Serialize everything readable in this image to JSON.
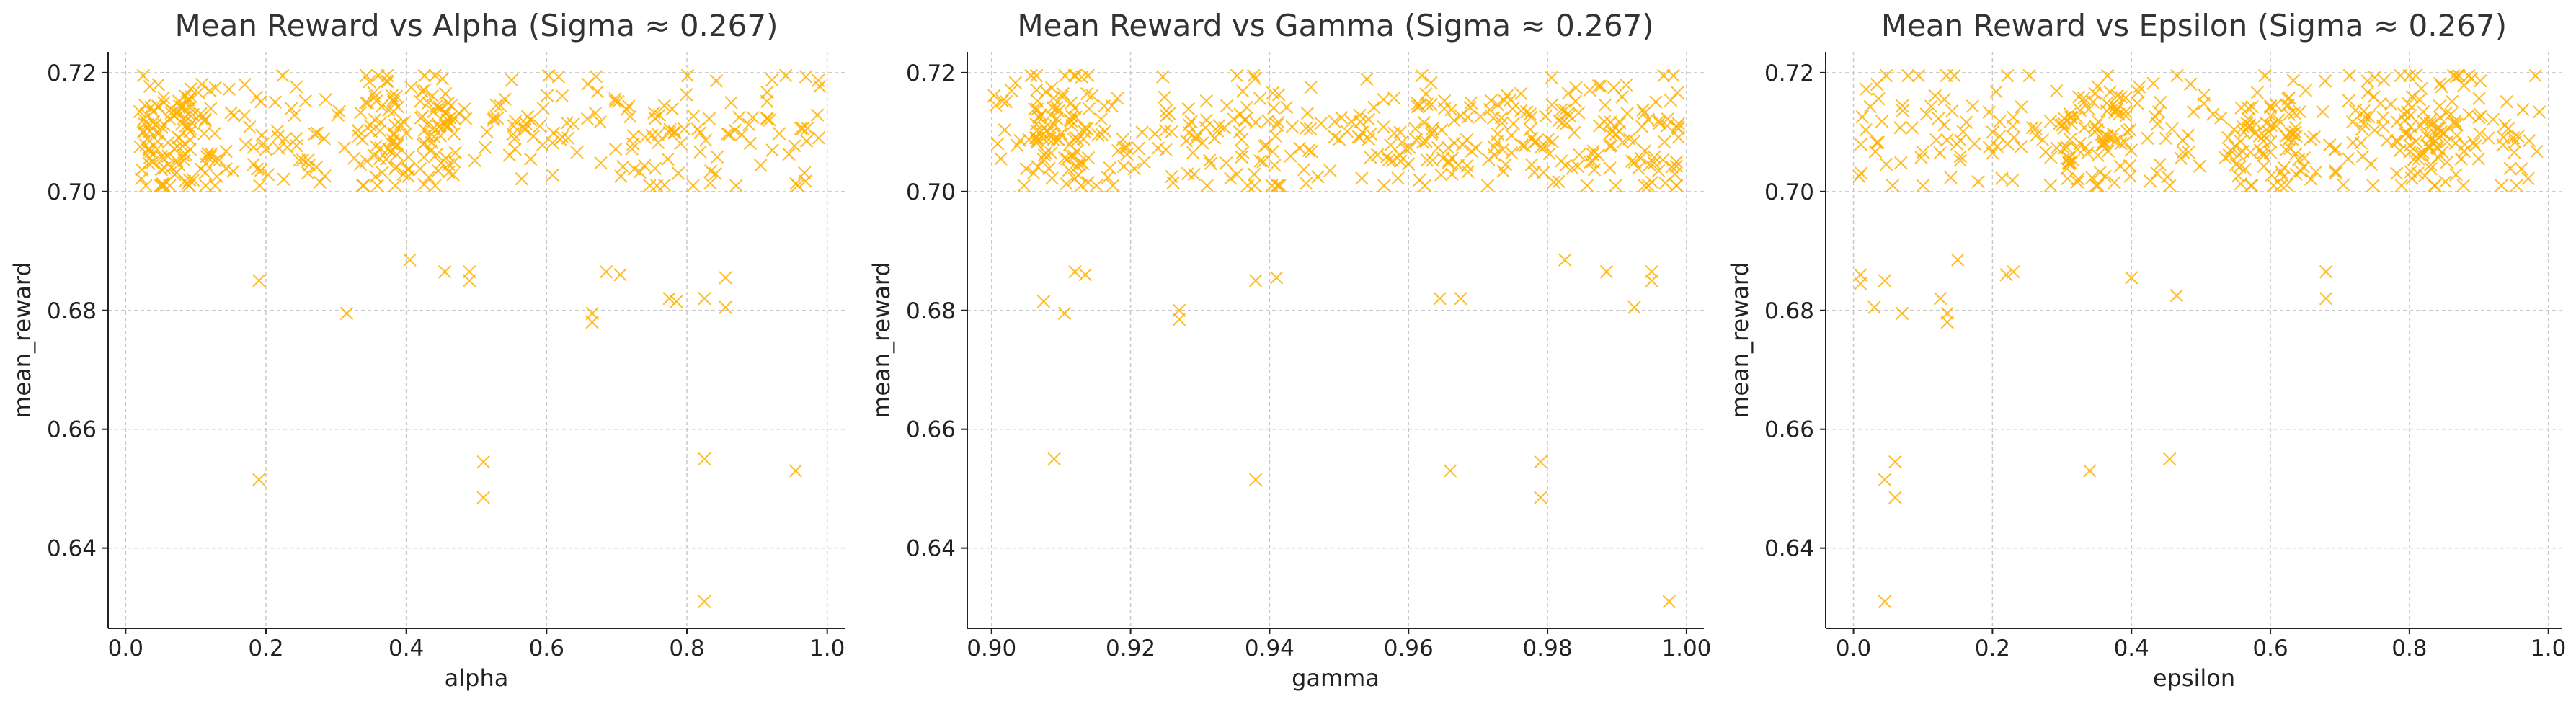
{
  "figure": {
    "charts_count": 3
  },
  "chart_data": [
    {
      "type": "scatter",
      "title": "Mean Reward vs Alpha (Sigma ≈ 0.267)",
      "xlabel": "alpha",
      "ylabel": "mean_reward",
      "xlim": [
        -0.025,
        1.025
      ],
      "ylim": [
        0.6265,
        0.7235
      ],
      "xticks": [
        "0.0",
        "0.2",
        "0.4",
        "0.6",
        "0.8",
        "1.0"
      ],
      "xtick_values": [
        0.0,
        0.2,
        0.4,
        0.6,
        0.8,
        1.0
      ],
      "yticks": [
        "0.64",
        "0.66",
        "0.68",
        "0.70",
        "0.72"
      ],
      "ytick_values": [
        0.64,
        0.66,
        0.68,
        0.7,
        0.72
      ],
      "grid": true,
      "marker": "x",
      "color": "#FFB000",
      "band": {
        "approx_count": 420,
        "y_range": [
          0.701,
          0.7195
        ],
        "y_center": 0.7095,
        "x_range": [
          0.02,
          0.99
        ],
        "denser_x_ranges": [
          [
            0.02,
            0.13
          ],
          [
            0.33,
            0.47
          ]
        ]
      },
      "outliers": [
        {
          "x": 0.19,
          "y": 0.685
        },
        {
          "x": 0.19,
          "y": 0.6515
        },
        {
          "x": 0.315,
          "y": 0.6795
        },
        {
          "x": 0.405,
          "y": 0.6885
        },
        {
          "x": 0.455,
          "y": 0.6865
        },
        {
          "x": 0.49,
          "y": 0.6865
        },
        {
          "x": 0.49,
          "y": 0.685
        },
        {
          "x": 0.51,
          "y": 0.6545
        },
        {
          "x": 0.51,
          "y": 0.6485
        },
        {
          "x": 0.665,
          "y": 0.6795
        },
        {
          "x": 0.665,
          "y": 0.678
        },
        {
          "x": 0.685,
          "y": 0.6865
        },
        {
          "x": 0.705,
          "y": 0.686
        },
        {
          "x": 0.775,
          "y": 0.682
        },
        {
          "x": 0.785,
          "y": 0.6815
        },
        {
          "x": 0.825,
          "y": 0.682
        },
        {
          "x": 0.825,
          "y": 0.655
        },
        {
          "x": 0.825,
          "y": 0.631
        },
        {
          "x": 0.855,
          "y": 0.6855
        },
        {
          "x": 0.855,
          "y": 0.6805
        },
        {
          "x": 0.955,
          "y": 0.653
        }
      ]
    },
    {
      "type": "scatter",
      "title": "Mean Reward vs Gamma (Sigma ≈ 0.267)",
      "xlabel": "gamma",
      "ylabel": "mean_reward",
      "xlim": [
        0.8965,
        1.0025
      ],
      "ylim": [
        0.6265,
        0.7235
      ],
      "xticks": [
        "0.90",
        "0.92",
        "0.94",
        "0.96",
        "0.98",
        "1.00"
      ],
      "xtick_values": [
        0.9,
        0.92,
        0.94,
        0.96,
        0.98,
        1.0
      ],
      "yticks": [
        "0.64",
        "0.66",
        "0.68",
        "0.70",
        "0.72"
      ],
      "ytick_values": [
        0.64,
        0.66,
        0.68,
        0.7,
        0.72
      ],
      "grid": true,
      "marker": "x",
      "color": "#FFB000",
      "band": {
        "approx_count": 420,
        "y_range": [
          0.701,
          0.7195
        ],
        "y_center": 0.7095,
        "x_range": [
          0.9,
          0.999
        ],
        "denser_x_ranges": [
          [
            0.906,
            0.914
          ],
          [
            0.955,
            0.999
          ]
        ]
      },
      "outliers": [
        {
          "x": 0.9075,
          "y": 0.6815
        },
        {
          "x": 0.909,
          "y": 0.655
        },
        {
          "x": 0.9105,
          "y": 0.6795
        },
        {
          "x": 0.912,
          "y": 0.6865
        },
        {
          "x": 0.9135,
          "y": 0.686
        },
        {
          "x": 0.927,
          "y": 0.68
        },
        {
          "x": 0.927,
          "y": 0.6785
        },
        {
          "x": 0.938,
          "y": 0.685
        },
        {
          "x": 0.938,
          "y": 0.6515
        },
        {
          "x": 0.941,
          "y": 0.6855
        },
        {
          "x": 0.9645,
          "y": 0.682
        },
        {
          "x": 0.966,
          "y": 0.653
        },
        {
          "x": 0.9675,
          "y": 0.682
        },
        {
          "x": 0.979,
          "y": 0.6545
        },
        {
          "x": 0.979,
          "y": 0.6485
        },
        {
          "x": 0.9825,
          "y": 0.6885
        },
        {
          "x": 0.9885,
          "y": 0.6865
        },
        {
          "x": 0.9925,
          "y": 0.6805
        },
        {
          "x": 0.995,
          "y": 0.6865
        },
        {
          "x": 0.995,
          "y": 0.685
        },
        {
          "x": 0.9975,
          "y": 0.631
        }
      ]
    },
    {
      "type": "scatter",
      "title": "Mean Reward vs Epsilon (Sigma ≈ 0.267)",
      "xlabel": "epsilon",
      "ylabel": "mean_reward",
      "xlim": [
        -0.04,
        1.02
      ],
      "ylim": [
        0.6265,
        0.7235
      ],
      "xticks": [
        "0.0",
        "0.2",
        "0.4",
        "0.6",
        "0.8",
        "1.0"
      ],
      "xtick_values": [
        0.0,
        0.2,
        0.4,
        0.6,
        0.8,
        1.0
      ],
      "yticks": [
        "0.64",
        "0.66",
        "0.68",
        "0.70",
        "0.72"
      ],
      "ytick_values": [
        0.64,
        0.66,
        0.68,
        0.7,
        0.72
      ],
      "grid": true,
      "marker": "x",
      "color": "#FFB000",
      "band": {
        "approx_count": 420,
        "y_range": [
          0.701,
          0.7195
        ],
        "y_center": 0.7095,
        "x_range": [
          0.0,
          0.99
        ],
        "denser_x_ranges": [
          [
            0.3,
            0.4
          ],
          [
            0.55,
            0.65
          ],
          [
            0.78,
            0.88
          ]
        ]
      },
      "outliers": [
        {
          "x": 0.01,
          "y": 0.686
        },
        {
          "x": 0.01,
          "y": 0.6845
        },
        {
          "x": 0.03,
          "y": 0.6805
        },
        {
          "x": 0.045,
          "y": 0.685
        },
        {
          "x": 0.045,
          "y": 0.6515
        },
        {
          "x": 0.045,
          "y": 0.631
        },
        {
          "x": 0.06,
          "y": 0.6545
        },
        {
          "x": 0.06,
          "y": 0.6485
        },
        {
          "x": 0.07,
          "y": 0.6795
        },
        {
          "x": 0.125,
          "y": 0.682
        },
        {
          "x": 0.135,
          "y": 0.6795
        },
        {
          "x": 0.135,
          "y": 0.678
        },
        {
          "x": 0.15,
          "y": 0.6885
        },
        {
          "x": 0.22,
          "y": 0.686
        },
        {
          "x": 0.23,
          "y": 0.6865
        },
        {
          "x": 0.34,
          "y": 0.653
        },
        {
          "x": 0.4,
          "y": 0.6855
        },
        {
          "x": 0.455,
          "y": 0.655
        },
        {
          "x": 0.465,
          "y": 0.6825
        },
        {
          "x": 0.68,
          "y": 0.6865
        },
        {
          "x": 0.68,
          "y": 0.682
        }
      ]
    }
  ]
}
